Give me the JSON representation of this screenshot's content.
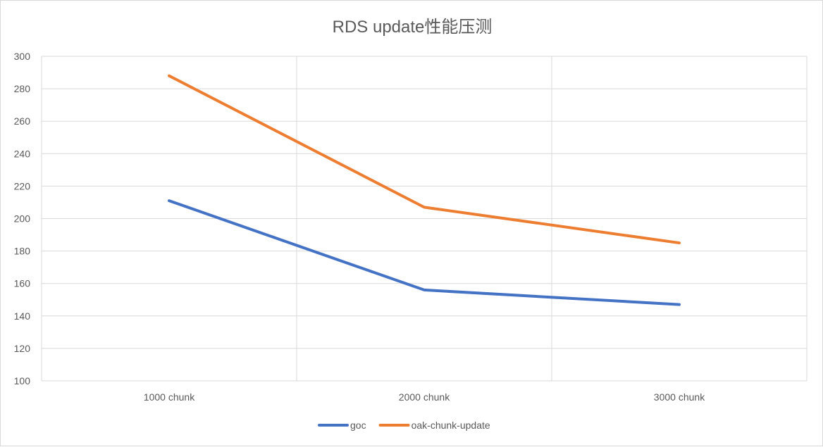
{
  "chart_data": {
    "type": "line",
    "title": "RDS update性能压测",
    "categories": [
      "1000 chunk",
      "2000 chunk",
      "3000 chunk"
    ],
    "series": [
      {
        "name": "goc",
        "color": "#4472C4",
        "values": [
          211,
          156,
          147
        ]
      },
      {
        "name": "oak-chunk-update",
        "color": "#ED7D31",
        "values": [
          288,
          207,
          185
        ]
      }
    ],
    "ylim": [
      100,
      300
    ],
    "yticks": [
      "100",
      "120",
      "140",
      "160",
      "180",
      "200",
      "220",
      "240",
      "260",
      "280",
      "300"
    ],
    "grid": true,
    "legend": "bottom"
  }
}
